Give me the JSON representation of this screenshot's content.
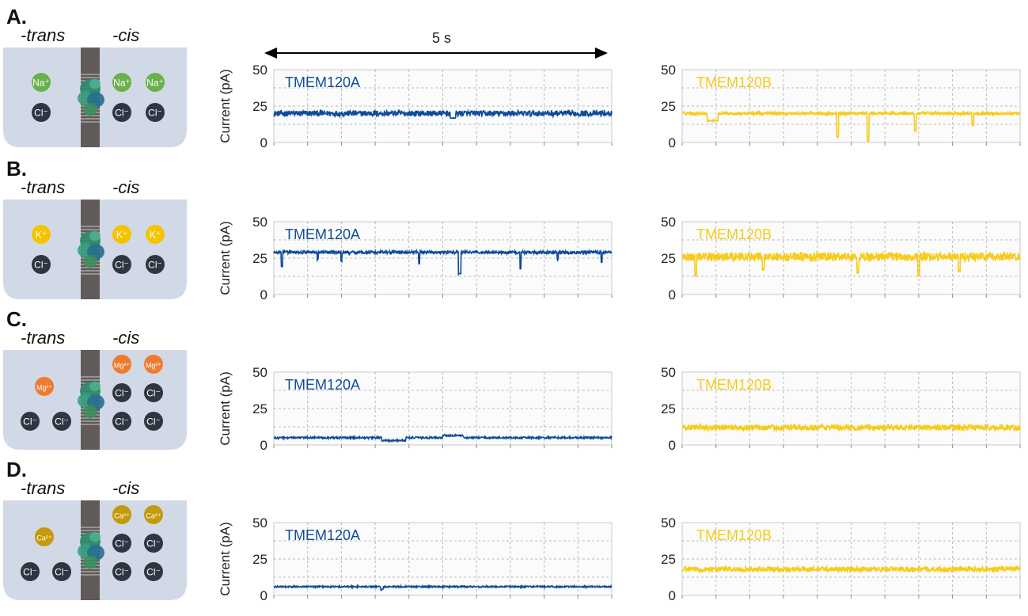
{
  "panels": [
    {
      "label": "A.",
      "trans_label": "-trans",
      "cis_label": "-cis",
      "trans_ions": [
        {
          "text": "Na⁺",
          "kind": "na"
        },
        {
          "text": "Cl⁻",
          "kind": "cl"
        }
      ],
      "cis_ions": [
        {
          "text": "Na⁺",
          "kind": "na"
        },
        {
          "text": "Na⁺",
          "kind": "na"
        },
        {
          "text": "Cl⁻",
          "kind": "cl"
        },
        {
          "text": "Cl⁻",
          "kind": "cl"
        }
      ]
    },
    {
      "label": "B.",
      "trans_label": "-trans",
      "cis_label": "-cis",
      "trans_ions": [
        {
          "text": "K⁺",
          "kind": "k"
        },
        {
          "text": "Cl⁻",
          "kind": "cl"
        }
      ],
      "cis_ions": [
        {
          "text": "K⁺",
          "kind": "k"
        },
        {
          "text": "K⁺",
          "kind": "k"
        },
        {
          "text": "Cl⁻",
          "kind": "cl"
        },
        {
          "text": "Cl⁻",
          "kind": "cl"
        }
      ]
    },
    {
      "label": "C.",
      "trans_label": "-trans",
      "cis_label": "-cis",
      "trans_ions": [
        {
          "text": "Mg²⁺",
          "kind": "mg"
        },
        {
          "text": "Cl⁻",
          "kind": "cl"
        },
        {
          "text": "Cl⁻",
          "kind": "cl"
        }
      ],
      "cis_ions": [
        {
          "text": "Mg²⁺",
          "kind": "mg"
        },
        {
          "text": "Mg²⁺",
          "kind": "mg"
        },
        {
          "text": "Cl⁻",
          "kind": "cl"
        },
        {
          "text": "Cl⁻",
          "kind": "cl"
        },
        {
          "text": "Cl⁻",
          "kind": "cl"
        },
        {
          "text": "Cl⁻",
          "kind": "cl"
        }
      ]
    },
    {
      "label": "D.",
      "trans_label": "-trans",
      "cis_label": "-cis",
      "trans_ions": [
        {
          "text": "Ca²⁺",
          "kind": "ca"
        },
        {
          "text": "Cl⁻",
          "kind": "cl"
        },
        {
          "text": "Cl⁻",
          "kind": "cl"
        }
      ],
      "cis_ions": [
        {
          "text": "Ca²⁺",
          "kind": "ca"
        },
        {
          "text": "Ca²⁺",
          "kind": "ca"
        },
        {
          "text": "Cl⁻",
          "kind": "cl"
        },
        {
          "text": "Cl⁻",
          "kind": "cl"
        },
        {
          "text": "Cl⁻",
          "kind": "cl"
        },
        {
          "text": "Cl⁻",
          "kind": "cl"
        }
      ]
    }
  ],
  "scale_bar": {
    "label": "5 s"
  },
  "ion_colors": {
    "na": "#6ab04c",
    "k": "#f5c400",
    "mg": "#ee7b30",
    "ca": "#c59a0a",
    "cl": "#2f3542"
  },
  "series_colors": {
    "TMEM120A": "#0e4c9a",
    "TMEM120B": "#f6cc1a"
  },
  "chart_data": [
    {
      "type": "line",
      "panel": "A.",
      "name": "TMEM120A",
      "ylabel": "Current (pA)",
      "ylim": [
        0,
        50
      ],
      "yticks": [
        0,
        25,
        50
      ],
      "grid": true,
      "x": [
        0,
        1,
        2,
        3,
        4,
        5
      ],
      "baseline": 20,
      "noise": 2.0,
      "events": [
        {
          "t": 2.65,
          "dy": -3,
          "w": 0.08
        }
      ]
    },
    {
      "type": "line",
      "panel": "A.",
      "name": "TMEM120B",
      "ylabel": "",
      "ylim": [
        0,
        50
      ],
      "yticks": [
        0,
        25,
        50
      ],
      "grid": true,
      "x": [
        0,
        1,
        2,
        3,
        4,
        5
      ],
      "baseline": 20,
      "noise": 1.0,
      "events": [
        {
          "t": 0.45,
          "dy": -5,
          "w": 0.15
        },
        {
          "t": 2.3,
          "dy": -16,
          "w": 0.02
        },
        {
          "t": 2.75,
          "dy": -19,
          "w": 0.02
        },
        {
          "t": 3.45,
          "dy": -12,
          "w": 0.02
        },
        {
          "t": 4.3,
          "dy": -8,
          "w": 0.02
        }
      ]
    },
    {
      "type": "line",
      "panel": "B.",
      "name": "TMEM120A",
      "ylabel": "Current (pA)",
      "ylim": [
        0,
        50
      ],
      "yticks": [
        0,
        25,
        50
      ],
      "grid": true,
      "x": [
        0,
        1,
        2,
        3,
        4,
        5
      ],
      "baseline": 29,
      "noise": 1.0,
      "events": [
        {
          "t": 0.12,
          "dy": -10,
          "w": 0.015
        },
        {
          "t": 0.65,
          "dy": -5,
          "w": 0.015
        },
        {
          "t": 1.0,
          "dy": -6,
          "w": 0.015
        },
        {
          "t": 2.15,
          "dy": -8,
          "w": 0.015
        },
        {
          "t": 2.75,
          "dy": -15,
          "w": 0.03
        },
        {
          "t": 3.65,
          "dy": -11,
          "w": 0.015
        },
        {
          "t": 4.2,
          "dy": -5,
          "w": 0.015
        },
        {
          "t": 4.85,
          "dy": -7,
          "w": 0.015
        }
      ]
    },
    {
      "type": "line",
      "panel": "B.",
      "name": "TMEM120B",
      "ylabel": "",
      "ylim": [
        0,
        50
      ],
      "yticks": [
        0,
        25,
        50
      ],
      "grid": true,
      "x": [
        0,
        1,
        2,
        3,
        4,
        5
      ],
      "baseline": 26,
      "noise": 3.0,
      "events": [
        {
          "t": 0.2,
          "dy": -13,
          "w": 0.02
        },
        {
          "t": 1.2,
          "dy": -9,
          "w": 0.02
        },
        {
          "t": 2.6,
          "dy": -11,
          "w": 0.02
        },
        {
          "t": 3.5,
          "dy": -13,
          "w": 0.02
        },
        {
          "t": 4.1,
          "dy": -10,
          "w": 0.02
        }
      ]
    },
    {
      "type": "line",
      "panel": "C.",
      "name": "TMEM120A",
      "ylabel": "Current (pA)",
      "ylim": [
        0,
        50
      ],
      "yticks": [
        0,
        25,
        50
      ],
      "grid": true,
      "x": [
        0,
        1,
        2,
        3,
        4,
        5
      ],
      "baseline": 5,
      "noise": 0.6,
      "levels": [
        {
          "t0": 1.6,
          "t1": 1.95,
          "dy": -2
        },
        {
          "t0": 2.5,
          "t1": 2.8,
          "dy": 1.5
        }
      ],
      "events": []
    },
    {
      "type": "line",
      "panel": "C.",
      "name": "TMEM120B",
      "ylabel": "",
      "ylim": [
        0,
        50
      ],
      "yticks": [
        0,
        25,
        50
      ],
      "grid": true,
      "x": [
        0,
        1,
        2,
        3,
        4,
        5
      ],
      "baseline": 12,
      "noise": 2.0,
      "events": []
    },
    {
      "type": "line",
      "panel": "D.",
      "name": "TMEM120A",
      "ylabel": "Current (pA)",
      "ylim": [
        0,
        50
      ],
      "yticks": [
        0,
        25,
        50
      ],
      "grid": true,
      "x": [
        0,
        1,
        2,
        3,
        4,
        5
      ],
      "baseline": 6,
      "noise": 0.5,
      "events": [
        {
          "t": 1.6,
          "dy": -2,
          "w": 0.03
        }
      ]
    },
    {
      "type": "line",
      "panel": "D.",
      "name": "TMEM120B",
      "ylabel": "",
      "ylim": [
        0,
        50
      ],
      "yticks": [
        0,
        25,
        50
      ],
      "grid": true,
      "x": [
        0,
        1,
        2,
        3,
        4,
        5
      ],
      "baseline": 18,
      "noise": 1.8,
      "events": []
    }
  ]
}
